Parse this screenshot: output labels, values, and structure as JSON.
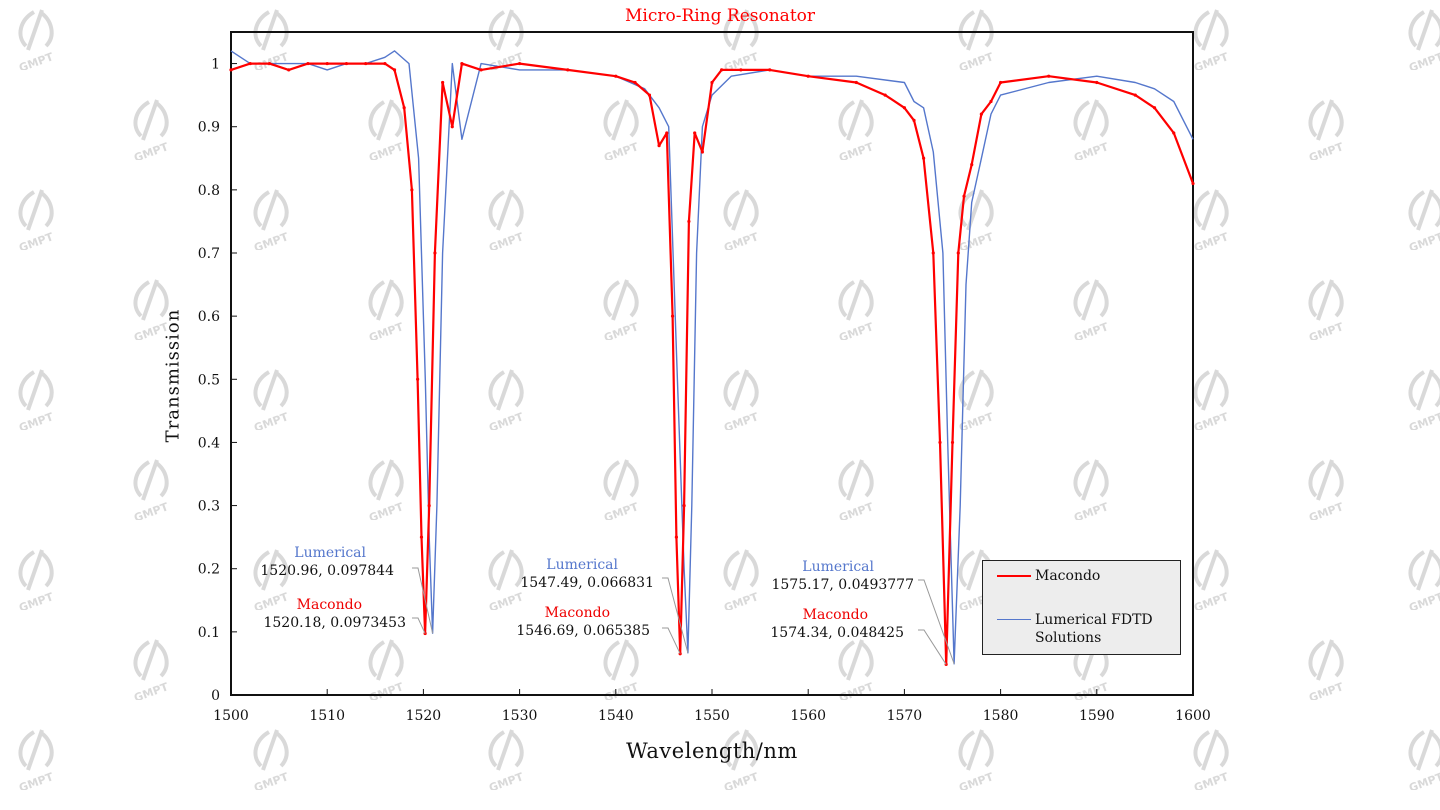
{
  "chart_data": {
    "type": "line",
    "title": "Micro-Ring Resonator",
    "xlabel": "Wavelength/nm",
    "ylabel": "Transmission",
    "xlim": [
      1500,
      1600
    ],
    "ylim": [
      0,
      1.05
    ],
    "xticks": [
      1500,
      1510,
      1520,
      1530,
      1540,
      1550,
      1560,
      1570,
      1580,
      1590,
      1600
    ],
    "yticks": [
      0,
      0.1,
      0.2,
      0.3,
      0.4,
      0.5,
      0.6,
      0.7,
      0.8,
      0.9,
      1
    ],
    "grid": false,
    "legend_position": "bottom-right",
    "series": [
      {
        "name": "Macondo",
        "color": "#ff0000",
        "marker": "dot",
        "x": [
          1500,
          1502,
          1504,
          1506,
          1508,
          1510,
          1512,
          1514,
          1516,
          1517,
          1518,
          1518.8,
          1519.4,
          1519.8,
          1520.18,
          1520.6,
          1521.2,
          1522,
          1523,
          1524,
          1526,
          1530,
          1535,
          1540,
          1542,
          1543.5,
          1544.5,
          1545.3,
          1545.9,
          1546.3,
          1546.69,
          1547.1,
          1547.6,
          1548.2,
          1549,
          1550,
          1551,
          1553,
          1556,
          1560,
          1565,
          1568,
          1570,
          1571,
          1572,
          1573,
          1573.7,
          1574.34,
          1575,
          1575.6,
          1576.2,
          1577,
          1578,
          1579,
          1580,
          1585,
          1590,
          1594,
          1596,
          1598,
          1600
        ],
        "y": [
          0.99,
          1.0,
          1.0,
          0.99,
          1.0,
          1.0,
          1.0,
          1.0,
          1.0,
          0.99,
          0.93,
          0.8,
          0.5,
          0.25,
          0.0973453,
          0.3,
          0.7,
          0.97,
          0.9,
          1.0,
          0.99,
          1.0,
          0.99,
          0.98,
          0.97,
          0.95,
          0.87,
          0.89,
          0.6,
          0.25,
          0.065385,
          0.3,
          0.75,
          0.89,
          0.86,
          0.97,
          0.99,
          0.99,
          0.99,
          0.98,
          0.97,
          0.95,
          0.93,
          0.91,
          0.85,
          0.7,
          0.4,
          0.048425,
          0.4,
          0.7,
          0.79,
          0.84,
          0.92,
          0.94,
          0.97,
          0.98,
          0.97,
          0.95,
          0.93,
          0.89,
          0.81
        ]
      },
      {
        "name": "Lumerical FDTD Solutions",
        "color": "#5577cc",
        "marker": "none",
        "x": [
          1500,
          1502,
          1504,
          1506,
          1508,
          1510,
          1512,
          1514,
          1516,
          1517,
          1518.5,
          1519.5,
          1520.2,
          1520.6,
          1520.96,
          1521.4,
          1522,
          1523,
          1524,
          1526,
          1530,
          1535,
          1540,
          1543,
          1544.5,
          1545.5,
          1546.4,
          1547.1,
          1547.49,
          1547.9,
          1548.4,
          1549,
          1550,
          1552,
          1556,
          1560,
          1565,
          1570,
          1571,
          1572,
          1573,
          1574,
          1574.5,
          1575.17,
          1575.8,
          1576.4,
          1577,
          1578,
          1579,
          1580,
          1585,
          1590,
          1594,
          1596,
          1598,
          1600
        ],
        "y": [
          1.02,
          1.0,
          1.0,
          1.0,
          1.0,
          0.99,
          1.0,
          1.0,
          1.01,
          1.02,
          1.0,
          0.85,
          0.5,
          0.25,
          0.097844,
          0.3,
          0.7,
          1.0,
          0.88,
          1.0,
          0.99,
          0.99,
          0.98,
          0.96,
          0.93,
          0.9,
          0.5,
          0.2,
          0.066831,
          0.3,
          0.7,
          0.9,
          0.95,
          0.98,
          0.99,
          0.98,
          0.98,
          0.97,
          0.94,
          0.93,
          0.86,
          0.7,
          0.4,
          0.0493777,
          0.3,
          0.65,
          0.78,
          0.85,
          0.92,
          0.95,
          0.97,
          0.98,
          0.97,
          0.96,
          0.94,
          0.88
        ]
      }
    ],
    "annotations": [
      {
        "label": "Lumerical",
        "value": "1520.96, 0.097844",
        "series": "Lumerical FDTD Solutions",
        "x": 1520.96,
        "y": 0.097844
      },
      {
        "label": "Macondo",
        "value": "1520.18, 0.0973453",
        "series": "Macondo",
        "x": 1520.18,
        "y": 0.0973453
      },
      {
        "label": "Lumerical",
        "value": "1547.49, 0.066831",
        "series": "Lumerical FDTD Solutions",
        "x": 1547.49,
        "y": 0.066831
      },
      {
        "label": "Macondo",
        "value": "1546.69, 0.065385",
        "series": "Macondo",
        "x": 1546.69,
        "y": 0.065385
      },
      {
        "label": "Lumerical",
        "value": "1575.17, 0.0493777",
        "series": "Lumerical FDTD Solutions",
        "x": 1575.17,
        "y": 0.0493777
      },
      {
        "label": "Macondo",
        "value": "1574.34, 0.048425",
        "series": "Macondo",
        "x": 1574.34,
        "y": 0.048425
      }
    ]
  },
  "watermark": {
    "text": "GMPT",
    "color": "#d9d9d9"
  }
}
